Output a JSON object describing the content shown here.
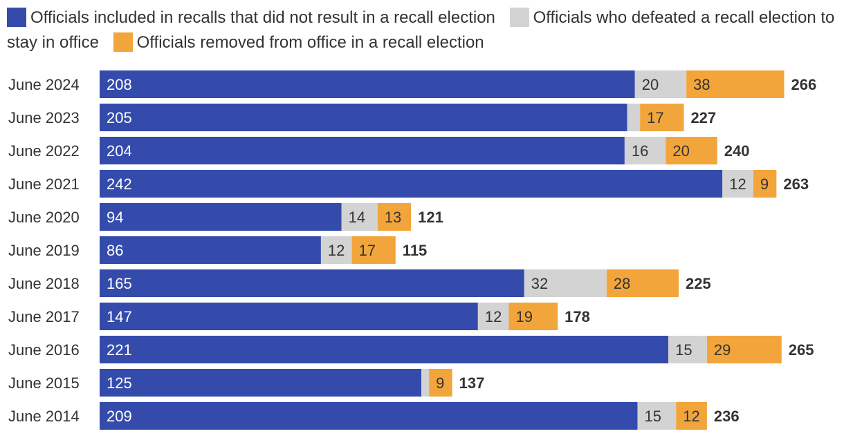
{
  "legend": [
    {
      "label": "Officials included in recalls that did not result in a recall election",
      "color": "#344bac"
    },
    {
      "label": "Officials who defeated a recall election to stay in office",
      "color": "#d3d3d3"
    },
    {
      "label": "Officials removed from office in a recall election",
      "color": "#f2a53b"
    }
  ],
  "chart_data": {
    "type": "bar",
    "orientation": "horizontal",
    "stacked": true,
    "categories": [
      "June 2024",
      "June 2023",
      "June 2022",
      "June 2021",
      "June 2020",
      "June 2019",
      "June 2018",
      "June 2017",
      "June 2016",
      "June 2015",
      "June 2014"
    ],
    "series": [
      {
        "name": "Officials included in recalls that did not result in a recall election",
        "color": "#344bac",
        "values": [
          208,
          205,
          204,
          242,
          94,
          86,
          165,
          147,
          221,
          125,
          209
        ]
      },
      {
        "name": "Officials who defeated a recall election to stay in office",
        "color": "#d3d3d3",
        "values": [
          20,
          5,
          16,
          12,
          14,
          12,
          32,
          12,
          15,
          3,
          15
        ]
      },
      {
        "name": "Officials removed from office in a recall election",
        "color": "#f2a53b",
        "values": [
          38,
          17,
          20,
          9,
          13,
          17,
          28,
          19,
          29,
          9,
          12
        ]
      }
    ],
    "segment_labels": [
      [
        "208",
        "205",
        "204",
        "242",
        "94",
        "86",
        "165",
        "147",
        "221",
        "125",
        "209"
      ],
      [
        "20",
        "",
        "16",
        "12",
        "14",
        "12",
        "32",
        "12",
        "15",
        "",
        "15"
      ],
      [
        "38",
        "17",
        "20",
        "9",
        "13",
        "17",
        "28",
        "19",
        "29",
        "9",
        "12"
      ]
    ],
    "totals": [
      266,
      227,
      240,
      263,
      121,
      115,
      225,
      178,
      265,
      137,
      236
    ],
    "xlim": [
      0,
      266
    ],
    "title": "",
    "xlabel": "",
    "ylabel": "",
    "grid": false,
    "legend_position": "top"
  }
}
